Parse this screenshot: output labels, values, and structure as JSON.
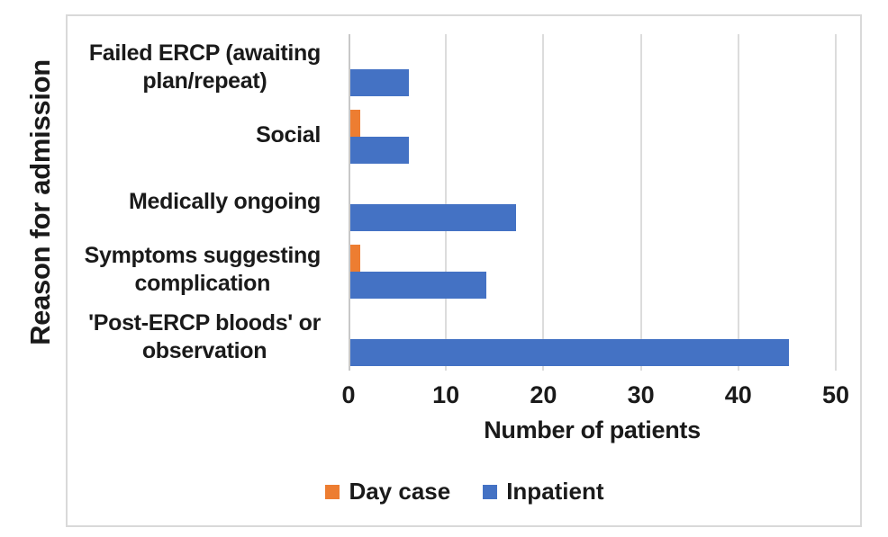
{
  "chart_data": {
    "type": "bar",
    "orientation": "horizontal",
    "title": "",
    "categories": [
      "Failed ERCP (awaiting\nplan/repeat)",
      "Social",
      "Medically ongoing",
      "Symptoms suggesting\ncomplication",
      "'Post-ERCP bloods' or\nobservation"
    ],
    "series": [
      {
        "name": "Day case",
        "color": "#ED7D31",
        "values": [
          0,
          1,
          0,
          1,
          0
        ]
      },
      {
        "name": "Inpatient",
        "color": "#4472C4",
        "values": [
          6,
          6,
          17,
          14,
          45
        ]
      }
    ],
    "xlabel": "Number of patients",
    "ylabel": "Reason for admission",
    "xlim": [
      0,
      50
    ],
    "xticks": [
      0,
      10,
      20,
      30,
      40,
      50
    ],
    "grid": "vertical-major",
    "legend_position": "bottom",
    "colors": {
      "gridline": "#DCDCDC",
      "axis_line": "#C8C8C8",
      "frame_border": "#D9D9D9",
      "text": "#1A1A1A",
      "background": "#FFFFFF"
    }
  }
}
